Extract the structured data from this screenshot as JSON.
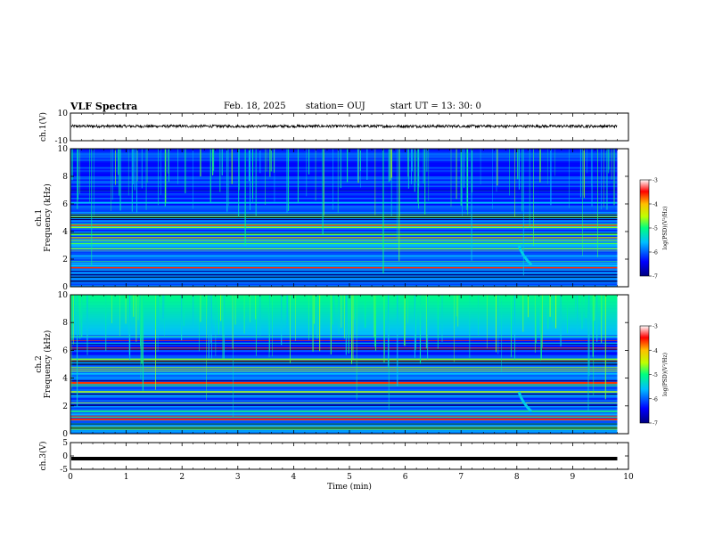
{
  "header": {
    "title": "VLF Spectra",
    "date": "Feb. 18, 2025",
    "station": "station= OUJ",
    "start": "start  UT  =   13: 30: 0"
  },
  "chart_data": [
    {
      "type": "line",
      "ylabel": "ch.1(V)",
      "ylim": [
        -10,
        10
      ],
      "y_ticks": [
        "10",
        "-10"
      ],
      "series": [
        {
          "values_description_mean": 0.5,
          "noise_amplitude": 1.0
        }
      ]
    },
    {
      "type": "heatmap",
      "ylabel": "ch.1\nFrequency (kHz)",
      "ylim": [
        0,
        10
      ],
      "y_ticks": [
        "10",
        "8",
        "6",
        "4",
        "2",
        "0"
      ],
      "colorbar": {
        "label": "log(PSD)(V²/Hz)",
        "range": [
          -7,
          -3
        ],
        "ticks": [
          "-3",
          "-4",
          "-5",
          "-6",
          "-7"
        ]
      }
    },
    {
      "type": "heatmap",
      "ylabel": "ch.2\nFrequency (kHz)",
      "ylim": [
        0,
        10
      ],
      "y_ticks": [
        "10",
        "8",
        "6",
        "4",
        "2",
        "0"
      ],
      "colorbar": {
        "label": "log(PSD)(V²/Hz)",
        "range": [
          -7,
          -3
        ],
        "ticks": [
          "-3",
          "-4",
          "-5",
          "-6",
          "-7"
        ]
      }
    },
    {
      "type": "line",
      "ylabel": "ch.3(V)",
      "ylim": [
        -5,
        5
      ],
      "y_ticks": [
        "5",
        "0",
        "-5"
      ],
      "series": [
        {
          "constant": -1
        }
      ]
    }
  ],
  "xaxis": {
    "label": "Time (min)",
    "range": [
      0,
      10
    ],
    "data_end": 9.8,
    "ticks": [
      "0",
      "1",
      "2",
      "3",
      "4",
      "5",
      "6",
      "7",
      "8",
      "9",
      "10"
    ]
  },
  "colors": {
    "scale": [
      "#00007f",
      "#0000ff",
      "#00bfff",
      "#00ff80",
      "#bfff00",
      "#ffbf00",
      "#ff0000",
      "#ffffff"
    ]
  }
}
